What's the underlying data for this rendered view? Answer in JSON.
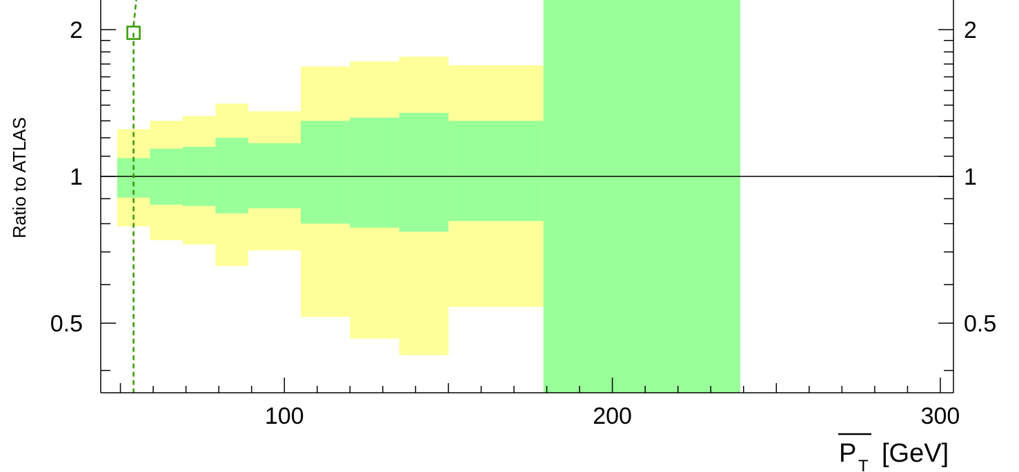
{
  "chart_data": {
    "type": "area",
    "ylabel": "Ratio to ATLAS",
    "xlabel": {
      "symbol": "P",
      "subscript": "T",
      "unit": "[GeV]"
    },
    "xlim": [
      44,
      304
    ],
    "ylim": [
      0.36,
      2.3
    ],
    "y_scale": "log",
    "x_tick_labels": [
      "100",
      "200",
      "300"
    ],
    "y_tick_labels_left": [
      "0.5",
      "1",
      "2"
    ],
    "y_tick_labels_right": [
      "0.5",
      "1",
      "2"
    ],
    "reference_line": 1.0,
    "colors": {
      "inner_band": "#99ff99",
      "outer_band": "#ffff99",
      "marker": "#339900"
    },
    "bins": [
      {
        "x_low": 49,
        "x_high": 59,
        "inner": [
          0.905,
          1.09
        ],
        "outer": [
          0.79,
          1.25
        ]
      },
      {
        "x_low": 59,
        "x_high": 69,
        "inner": [
          0.875,
          1.14
        ],
        "outer": [
          0.74,
          1.3
        ]
      },
      {
        "x_low": 69,
        "x_high": 79,
        "inner": [
          0.87,
          1.15
        ],
        "outer": [
          0.725,
          1.33
        ]
      },
      {
        "x_low": 79,
        "x_high": 89,
        "inner": [
          0.84,
          1.2
        ],
        "outer": [
          0.655,
          1.41
        ]
      },
      {
        "x_low": 89,
        "x_high": 105,
        "inner": [
          0.86,
          1.17
        ],
        "outer": [
          0.705,
          1.36
        ]
      },
      {
        "x_low": 105,
        "x_high": 120,
        "inner": [
          0.8,
          1.3
        ],
        "outer": [
          0.515,
          1.68
        ]
      },
      {
        "x_low": 120,
        "x_high": 135,
        "inner": [
          0.785,
          1.32
        ],
        "outer": [
          0.465,
          1.72
        ]
      },
      {
        "x_low": 135,
        "x_high": 150,
        "inner": [
          0.77,
          1.35
        ],
        "outer": [
          0.43,
          1.76
        ]
      },
      {
        "x_low": 150,
        "x_high": 179,
        "inner": [
          0.81,
          1.3
        ],
        "outer": [
          0.54,
          1.69
        ]
      },
      {
        "x_low": 179,
        "x_high": 239,
        "inner": [
          0.36,
          2.3
        ],
        "outer": [
          0.36,
          2.3
        ]
      }
    ],
    "overlay_series": {
      "style": "dashed",
      "points": [
        {
          "x": 54,
          "y": 1.97
        }
      ]
    }
  }
}
